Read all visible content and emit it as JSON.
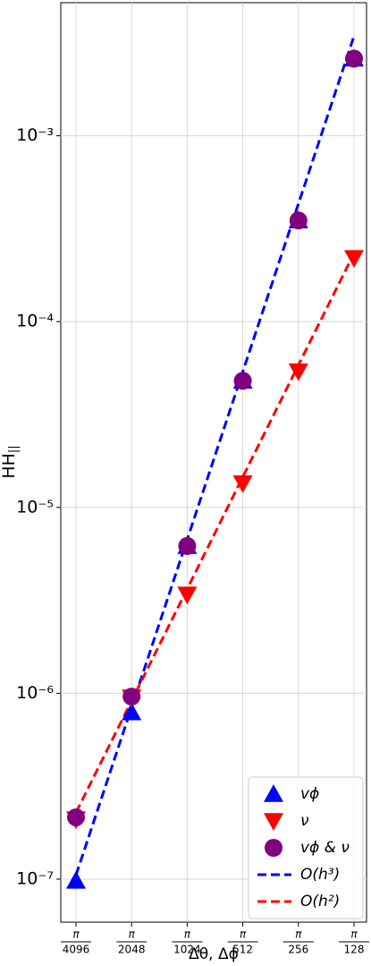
{
  "chart_data": {
    "type": "line",
    "x_label": "Δθ, Δϕ",
    "y_label": "HH",
    "y_label_subscript": "||",
    "xticks": [
      {
        "numerator": "π",
        "denominator": "4096"
      },
      {
        "numerator": "π",
        "denominator": "2048"
      },
      {
        "numerator": "π",
        "denominator": "1024"
      },
      {
        "numerator": "π",
        "denominator": "512"
      },
      {
        "numerator": "π",
        "denominator": "256"
      },
      {
        "numerator": "π",
        "denominator": "128"
      }
    ],
    "log_y": true,
    "ylim": [
      5.87e-08,
      0.0052
    ],
    "yticks": [
      {
        "value": 1e-07,
        "label": "10⁻⁷"
      },
      {
        "value": 1e-06,
        "label": "10⁻⁶"
      },
      {
        "value": 1e-05,
        "label": "10⁻⁵"
      },
      {
        "value": 0.0001,
        "label": "10⁻⁴"
      },
      {
        "value": 0.001,
        "label": "10⁻³"
      }
    ],
    "grid": true,
    "legend": "lower right",
    "series": [
      {
        "name": "vϕ",
        "color": "#0000ff",
        "marker": "triangle-up",
        "values": [
          9.8e-08,
          7.9e-07,
          6.2e-06,
          4.8e-05,
          0.00035,
          0.0026
        ]
      },
      {
        "name": "ν",
        "color": "#ff0000",
        "marker": "triangle-down",
        "values": [
          2.1e-07,
          9.5e-07,
          3.4e-06,
          1.35e-05,
          5.4e-05,
          0.00022
        ]
      },
      {
        "name": "vϕ & ν",
        "color": "#800080",
        "marker": "circle",
        "values": [
          2.15e-07,
          9.6e-07,
          6.2e-06,
          4.8e-05,
          0.00035,
          0.0026
        ]
      },
      {
        "name": "O(h³)",
        "color": "#0000ff",
        "marker": "dashed",
        "values": [
          1.05e-07,
          8.4e-07,
          6.72e-06,
          5.38e-05,
          0.00043,
          0.00344
        ]
      },
      {
        "name": "O(h²)",
        "color": "#ff0000",
        "marker": "dashed",
        "values": [
          2.28e-07,
          9.1e-07,
          3.64e-06,
          1.46e-05,
          5.83e-05,
          0.000233
        ]
      }
    ]
  }
}
